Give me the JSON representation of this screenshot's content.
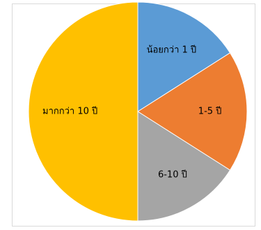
{
  "chart_data": {
    "type": "pie",
    "categories": [
      "น้อยกว่า 1 ปี",
      "1-5 ปี",
      "6-10 ปี",
      "มากกว่า 10 ปี"
    ],
    "values": [
      16,
      18,
      16,
      50
    ],
    "colors": [
      "#5b9bd5",
      "#ed7d31",
      "#a5a5a5",
      "#ffc000"
    ],
    "start_angle_deg": 0,
    "direction": "clockwise",
    "grid": false,
    "legend": "none"
  }
}
